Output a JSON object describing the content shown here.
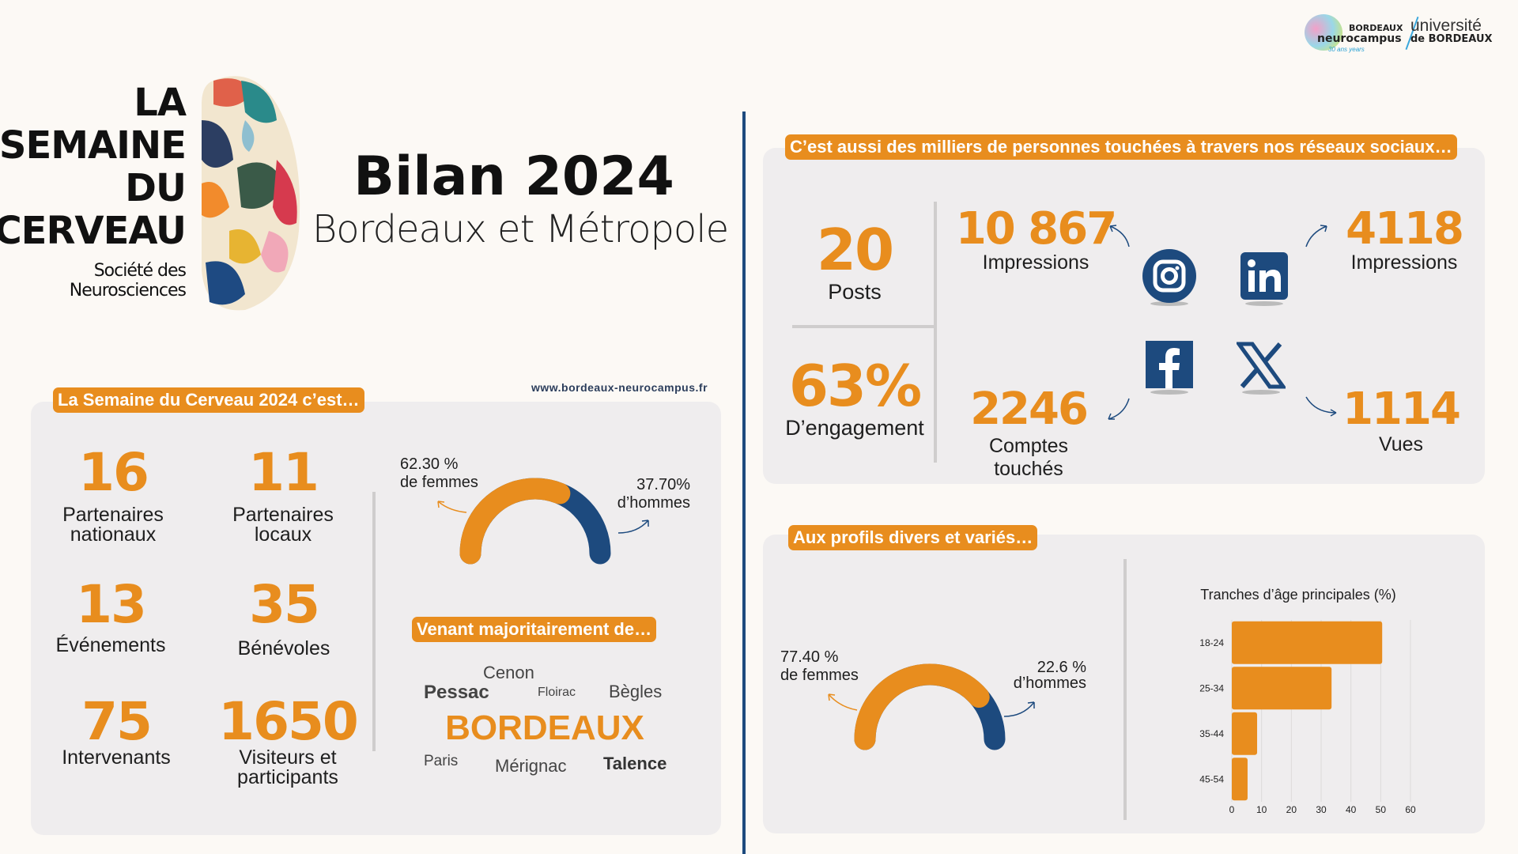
{
  "header": {
    "logo_lines": [
      "LA",
      "SEMAINE",
      "DU",
      "CERVEAU"
    ],
    "logo_sub": [
      "Société des",
      "Neurosciences"
    ],
    "title": "Bilan 2024",
    "subtitle": "Bordeaux et Métropole",
    "partner_logo_1": {
      "top": "BORDEAUX",
      "main": "neurocampus",
      "years": "30 ans years"
    },
    "partner_logo_2": {
      "main": "université",
      "sub": "de BORDEAUX"
    },
    "url": "www.bordeaux-neurocampus.fr"
  },
  "left": {
    "tag": "La Semaine du Cerveau 2024 c’est…",
    "stats": [
      {
        "value": "16",
        "label": "Partenaires nationaux"
      },
      {
        "value": "11",
        "label": "Partenaires locaux"
      },
      {
        "value": "13",
        "label": "Événements"
      },
      {
        "value": "35",
        "label": "Bénévoles"
      },
      {
        "value": "75",
        "label": "Intervenants"
      },
      {
        "value": "1650",
        "label": "Visiteurs et participants"
      }
    ],
    "gender": {
      "women_pct": 62.3,
      "women_value": "62.30 %",
      "women_label": "de femmes",
      "men_value": "37.70%",
      "men_label": "d’hommes"
    },
    "origin_tag": "Venant majoritairement de…",
    "cities": [
      "Cenon",
      "Pessac",
      "Floirac",
      "Bègles",
      "BORDEAUX",
      "Paris",
      "Mérignac",
      "Talence"
    ]
  },
  "social": {
    "tag": "C’est aussi des milliers de personnes touchées à travers nos réseaux sociaux…",
    "posts": {
      "value": "20",
      "label": "Posts"
    },
    "engagement": {
      "value": "63%",
      "label": "D’engagement"
    },
    "instagram": {
      "value": "10 867",
      "label": "Impressions"
    },
    "linkedin": {
      "value": "4118",
      "label": "Impressions"
    },
    "facebook": {
      "value": "2246",
      "label": "Comptes touchés"
    },
    "x": {
      "value": "1114",
      "label": "Vues"
    }
  },
  "profiles": {
    "tag": "Aux profils divers et variés…",
    "gender": {
      "women_pct": 77.4,
      "women_value": "77.40 %",
      "women_label": "de femmes",
      "men_value": "22.6 %",
      "men_label": "d’hommes"
    }
  },
  "colors": {
    "orange": "#e88d1e",
    "blue": "#1d4a7e"
  },
  "chart_data": {
    "type": "bar",
    "orientation": "horizontal",
    "title": "Tranches d’âge principales (%)",
    "categories": [
      "18-24",
      "25-34",
      "35-44",
      "45-54"
    ],
    "values": [
      50.5,
      33.5,
      8.5,
      5.3
    ],
    "xlim": [
      0,
      60
    ],
    "xticks": [
      "0",
      "10",
      "20",
      "30",
      "40",
      "50",
      "60"
    ],
    "grid": true
  }
}
